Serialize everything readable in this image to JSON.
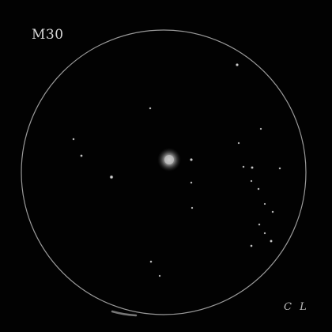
{
  "title": "M30",
  "signature": "C L",
  "colors": {
    "background": "#020202",
    "field_circle": "#9a9a9a",
    "stars": "#e6e6e6",
    "text": "#d8d8d8"
  },
  "icons": {
    "field_of_view": "field-circle",
    "cluster_core": "cluster-core-icon",
    "star": "star-icon"
  }
}
